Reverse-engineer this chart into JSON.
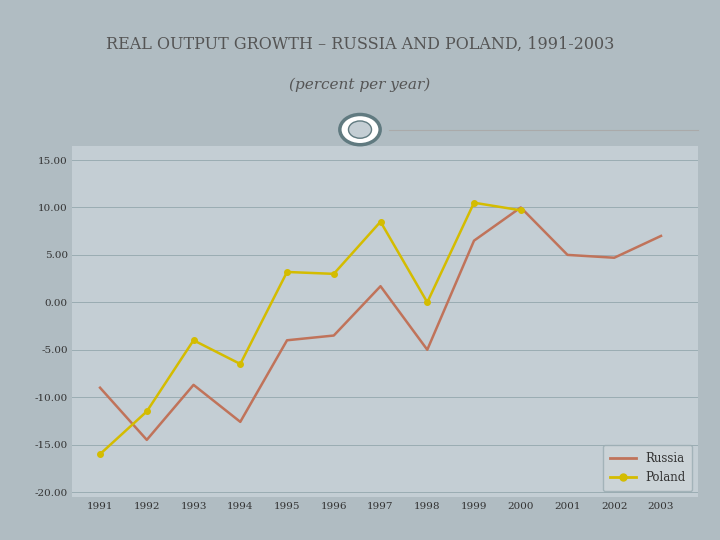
{
  "title_line1": "REAL OUTPUT GROWTH – RUSSIA AND POLAND, 1991-2003",
  "title_line2": "(percent per year)",
  "years": [
    1991,
    1992,
    1993,
    1994,
    1995,
    1996,
    1997,
    1998,
    1999,
    2000,
    2001,
    2002,
    2003
  ],
  "russia": [
    -9.0,
    -14.5,
    -8.7,
    -12.6,
    -4.0,
    -3.5,
    1.7,
    -5.0,
    6.5,
    10.0,
    5.0,
    4.7,
    7.0
  ],
  "poland": [
    -16.0,
    -11.5,
    -4.0,
    -6.5,
    3.2,
    3.0,
    8.5,
    0.0,
    10.5,
    9.7,
    null,
    null,
    null
  ],
  "russia_color": "#c0735a",
  "poland_color": "#d4bc00",
  "outer_bg": "#b0bcc2",
  "plot_bg": "#c4ced4",
  "title_bg": "#f5f3ef",
  "border_color": "#c8d0d4",
  "ylim": [
    -20.5,
    16.5
  ],
  "yticks": [
    -20.0,
    -15.0,
    -10.0,
    -5.0,
    0.0,
    5.0,
    10.0,
    15.0
  ],
  "ytick_labels": [
    "-20.00",
    "-15.00",
    "-10.00",
    "-5.00",
    "0.00",
    "5.00",
    "10.00",
    "15.00"
  ],
  "grid_color": "#9aacb2",
  "circle_color": "#607a80",
  "legend_russia": "Russia",
  "legend_poland": "Poland"
}
